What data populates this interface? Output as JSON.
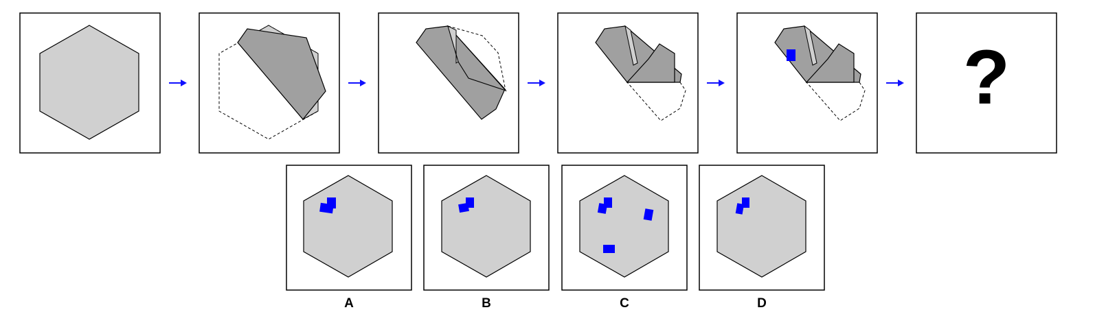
{
  "colors": {
    "hexagon_fill": "#d0d0d0",
    "fold_fill": "#a0a0a0",
    "outline": "#000000",
    "arrow": "#1010ff",
    "marker": "#0000ff"
  },
  "sequence": {
    "arrow_icon": "right-arrow-icon",
    "question_mark": "?"
  },
  "options": [
    {
      "label": "A"
    },
    {
      "label": "B"
    },
    {
      "label": "C"
    },
    {
      "label": "D"
    }
  ]
}
